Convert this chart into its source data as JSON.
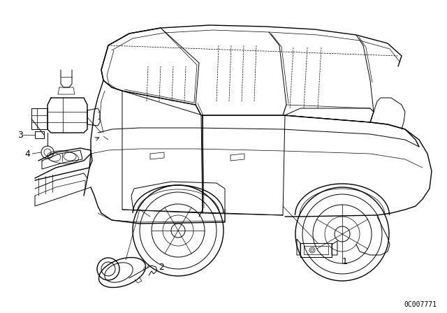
{
  "background_color": "#ffffff",
  "part_number": "0C007771",
  "fig_width": 6.4,
  "fig_height": 4.48,
  "dpi": 100,
  "lw_main": 1.0,
  "lw_med": 0.7,
  "lw_thin": 0.5,
  "car_color": "#000000"
}
